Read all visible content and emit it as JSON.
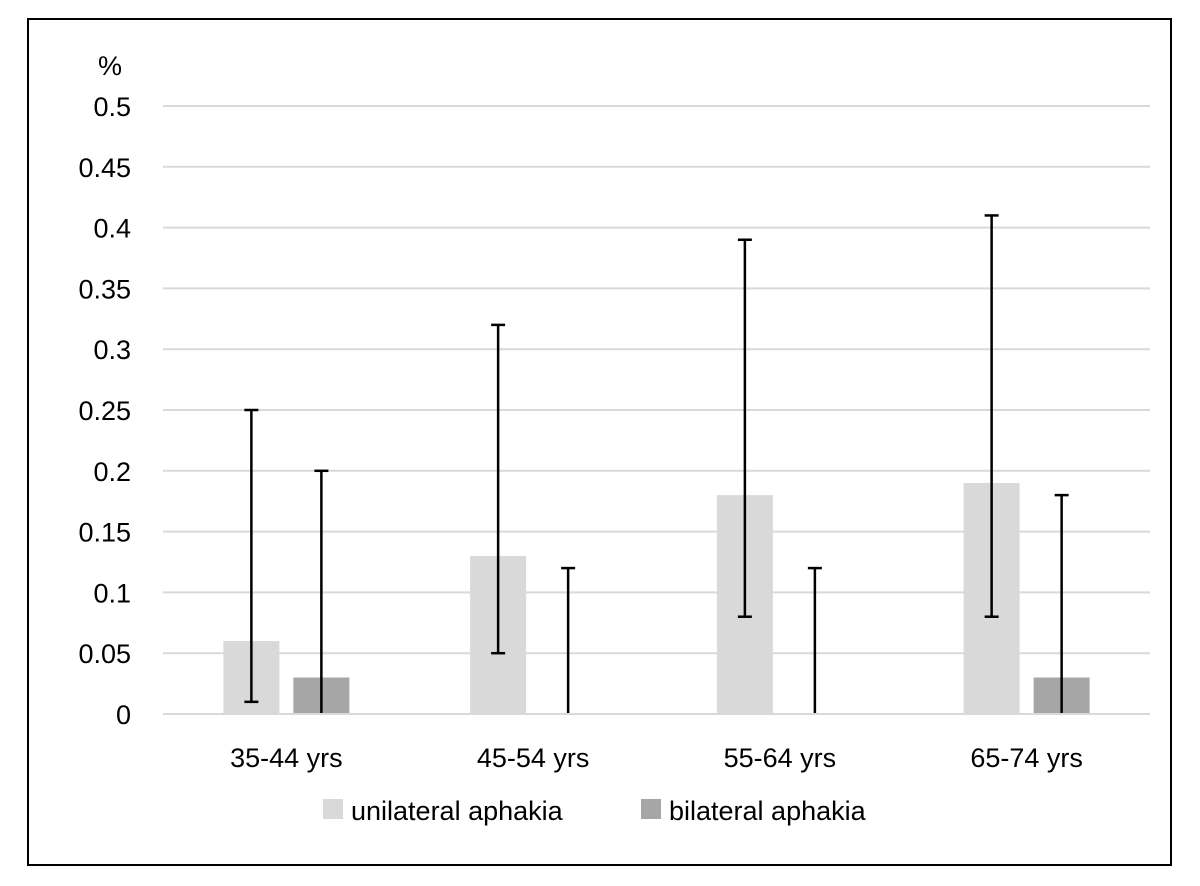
{
  "chart_data": {
    "type": "bar",
    "title": "",
    "xlabel": "",
    "ylabel": "%",
    "ylim": [
      0,
      0.5
    ],
    "yticks": [
      "0",
      "0.05",
      "0.1",
      "0.15",
      "0.2",
      "0.25",
      "0.3",
      "0.35",
      "0.4",
      "0.45",
      "0.5"
    ],
    "categories": [
      "35-44 yrs",
      "45-54 yrs",
      "55-64 yrs",
      "65-74 yrs"
    ],
    "grid": true,
    "legend_position": "bottom",
    "series": [
      {
        "name": "unilateral aphakia",
        "color": "#d9d9d9",
        "values": [
          0.06,
          0.13,
          0.18,
          0.19
        ],
        "error_low": [
          0.01,
          0.05,
          0.08,
          0.08
        ],
        "error_high": [
          0.25,
          0.32,
          0.39,
          0.41
        ]
      },
      {
        "name": "bilateral aphakia",
        "color": "#a6a6a6",
        "values": [
          0.03,
          0.0,
          0.0,
          0.03
        ],
        "error_low": [
          0.0,
          0.0,
          0.0,
          0.0
        ],
        "error_high": [
          0.2,
          0.12,
          0.12,
          0.18
        ]
      }
    ]
  }
}
